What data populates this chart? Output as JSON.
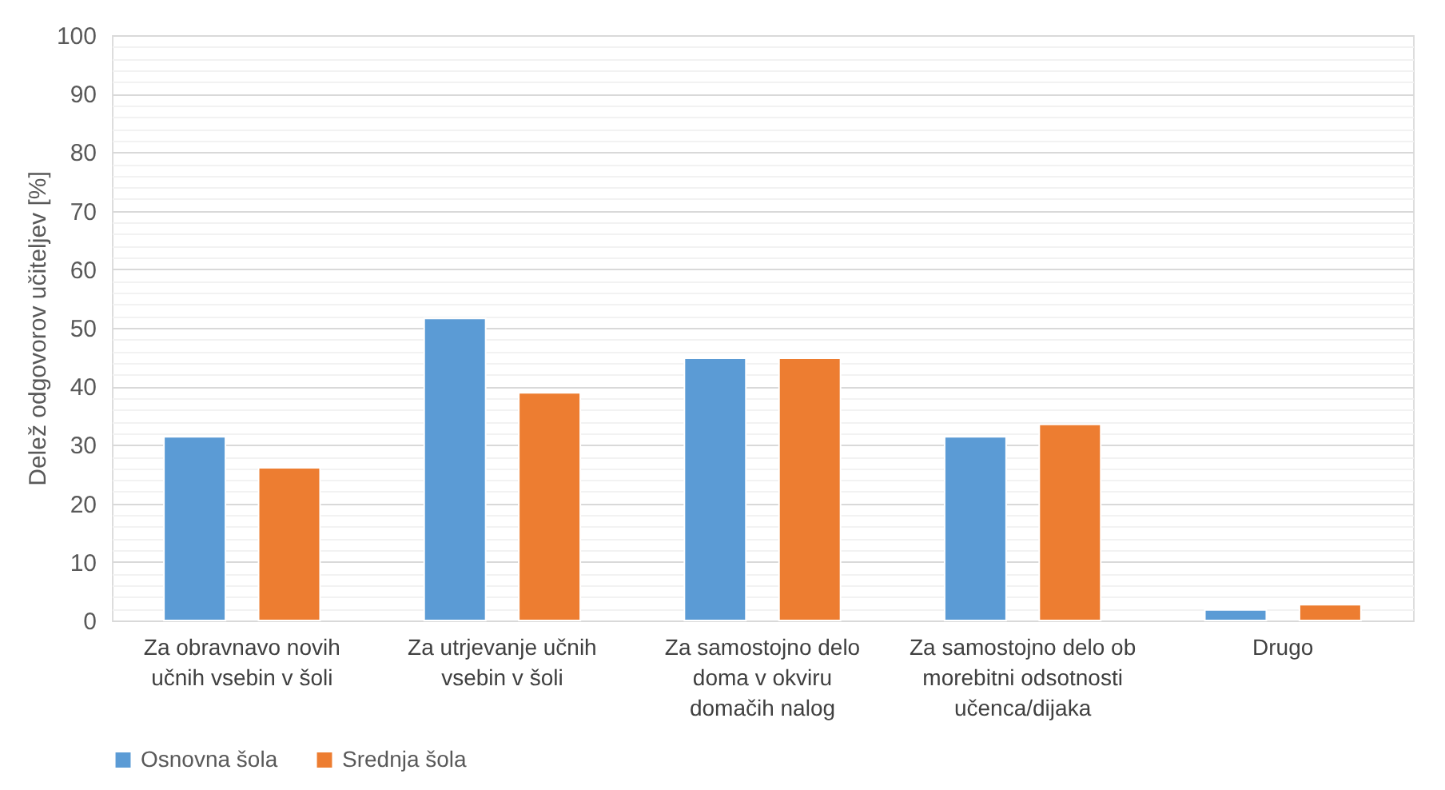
{
  "chart_data": {
    "type": "bar",
    "ylabel": "Delež odgovorov učiteljev [%]",
    "categories": [
      "Za obravnavo novih\nučnih vsebin v šoli",
      "Za utrjevanje učnih\nvsebin v šoli",
      "Za samostojno delo\ndoma v okviru\ndomačih nalog",
      "Za samostojno delo ob\nmorebitni odsotnosti\nučenca/dijaka",
      "Drugo"
    ],
    "series": [
      {
        "name": "Osnovna šola",
        "color": "#5b9bd5",
        "values": [
          31.4,
          51.6,
          44.8,
          31.4,
          1.8
        ]
      },
      {
        "name": "Srednja šola",
        "color": "#ed7d31",
        "values": [
          26.1,
          38.9,
          44.8,
          33.5,
          2.7
        ]
      }
    ],
    "ylim": [
      0,
      100
    ],
    "yticks": [
      0,
      {
        "value": 2,
        "label": null
      },
      {
        "value": 4,
        "label": null
      },
      {
        "value": 6,
        "label": null
      },
      {
        "value": 8,
        "label": null
      },
      10,
      {
        "value": 12,
        "label": null
      },
      {
        "value": 14,
        "label": null
      },
      {
        "value": 16,
        "label": null
      },
      {
        "value": 18,
        "label": null
      },
      20,
      {
        "value": 22,
        "label": null
      },
      {
        "value": 24,
        "label": null
      },
      {
        "value": 26,
        "label": null
      },
      {
        "value": 28,
        "label": null
      },
      30,
      {
        "value": 32,
        "label": null
      },
      {
        "value": 34,
        "label": null
      },
      {
        "value": 36,
        "label": null
      },
      {
        "value": 38,
        "label": null
      },
      40,
      {
        "value": 42,
        "label": null
      },
      {
        "value": 44,
        "label": null
      },
      {
        "value": 46,
        "label": null
      },
      {
        "value": 48,
        "label": null
      },
      50,
      {
        "value": 52,
        "label": null
      },
      {
        "value": 54,
        "label": null
      },
      {
        "value": 56,
        "label": null
      },
      {
        "value": 58,
        "label": null
      },
      60,
      {
        "value": 62,
        "label": null
      },
      {
        "value": 64,
        "label": null
      },
      {
        "value": 66,
        "label": null
      },
      {
        "value": 68,
        "label": null
      },
      70,
      {
        "value": 72,
        "label": null
      },
      {
        "value": 74,
        "label": null
      },
      {
        "value": 76,
        "label": null
      },
      {
        "value": 78,
        "label": null
      },
      80,
      {
        "value": 82,
        "label": null
      },
      {
        "value": 84,
        "label": null
      },
      {
        "value": 86,
        "label": null
      },
      {
        "value": 88,
        "label": null
      },
      90,
      {
        "value": 92,
        "label": null
      },
      {
        "value": 94,
        "label": null
      },
      {
        "value": 96,
        "label": null
      },
      {
        "value": 98,
        "label": null
      },
      100
    ],
    "grid": true,
    "legend": "bottom"
  }
}
